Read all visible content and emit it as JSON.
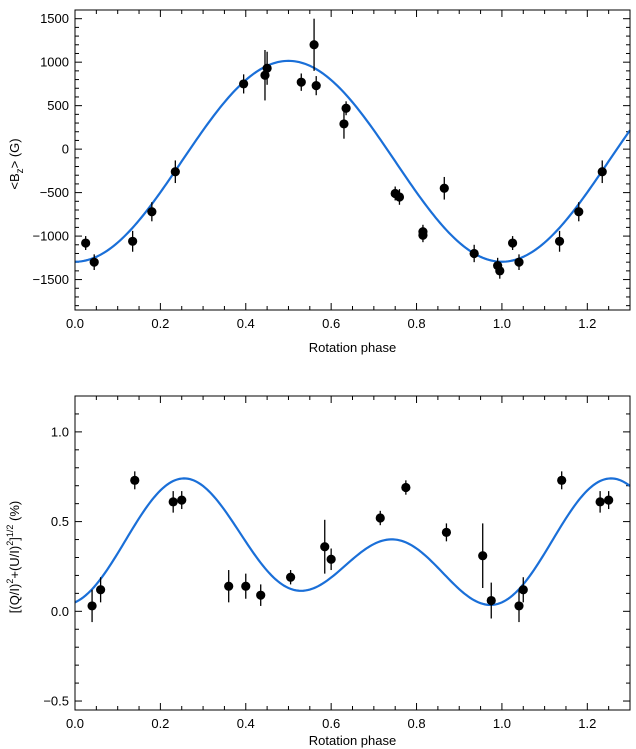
{
  "colors": {
    "fit": "#1a6fd8",
    "points": "#000000",
    "axes": "#000000"
  },
  "chart_data": [
    {
      "type": "scatter",
      "xlabel": "Rotation phase",
      "ylabel": "<B_z> (G)",
      "ylabel_parts": {
        "pre": "<B",
        "sub": "z",
        "post": "> (G)"
      },
      "xlim": [
        0.0,
        1.3
      ],
      "ylim": [
        -1850,
        1600
      ],
      "xticks": [
        0.0,
        0.2,
        0.4,
        0.6,
        0.8,
        1.0,
        1.2
      ],
      "xtick_labels": [
        "0.0",
        "0.2",
        "0.4",
        "0.6",
        "0.8",
        "1.0",
        "1.2"
      ],
      "yticks": [
        -1500,
        -1000,
        -500,
        0,
        500,
        1000,
        1500
      ],
      "ytick_labels": [
        "−1500",
        "−1000",
        "−500",
        "0",
        "500",
        "1000",
        "1500"
      ],
      "fit_model": {
        "name": "sinusoid",
        "y0": -140,
        "amplitude": 1155,
        "phase_of_minimum": 0.0,
        "period": 1.0
      },
      "series": [
        {
          "name": "observations",
          "points": [
            {
              "x": 0.025,
              "y": -1080,
              "err": 80
            },
            {
              "x": 0.045,
              "y": -1300,
              "err": 90
            },
            {
              "x": 0.135,
              "y": -1060,
              "err": 120
            },
            {
              "x": 0.18,
              "y": -720,
              "err": 110
            },
            {
              "x": 0.235,
              "y": -260,
              "err": 130
            },
            {
              "x": 0.395,
              "y": 750,
              "err": 110
            },
            {
              "x": 0.445,
              "y": 850,
              "err": 290
            },
            {
              "x": 0.45,
              "y": 930,
              "err": 190
            },
            {
              "x": 0.53,
              "y": 770,
              "err": 100
            },
            {
              "x": 0.56,
              "y": 1200,
              "err": 300
            },
            {
              "x": 0.565,
              "y": 730,
              "err": 110
            },
            {
              "x": 0.63,
              "y": 290,
              "err": 170
            },
            {
              "x": 0.635,
              "y": 470,
              "err": 80
            },
            {
              "x": 0.75,
              "y": -510,
              "err": 80
            },
            {
              "x": 0.76,
              "y": -550,
              "err": 90
            },
            {
              "x": 0.815,
              "y": -950,
              "err": 80
            },
            {
              "x": 0.815,
              "y": -990,
              "err": 80
            },
            {
              "x": 0.865,
              "y": -450,
              "err": 130
            },
            {
              "x": 0.935,
              "y": -1200,
              "err": 100
            },
            {
              "x": 0.99,
              "y": -1340,
              "err": 90
            },
            {
              "x": 0.995,
              "y": -1400,
              "err": 90
            },
            {
              "x": 1.025,
              "y": -1080,
              "err": 80
            },
            {
              "x": 1.04,
              "y": -1300,
              "err": 90
            },
            {
              "x": 1.135,
              "y": -1060,
              "err": 120
            },
            {
              "x": 1.18,
              "y": -720,
              "err": 110
            },
            {
              "x": 1.235,
              "y": -260,
              "err": 130
            }
          ]
        },
        {
          "name": "sinusoidal fit"
        }
      ]
    },
    {
      "type": "scatter",
      "xlabel": "Rotation phase",
      "ylabel": "[(Q/I)^2+(U/I)^2]^1/2 (%)",
      "ylabel_parts": {
        "a": "[(Q/I)",
        "b": "+(U/I)",
        "c": "]",
        "d": " (%)",
        "sup2": "2",
        "sup_half": "1/2"
      },
      "xlim": [
        0.0,
        1.3
      ],
      "ylim": [
        -0.55,
        1.2
      ],
      "xticks": [
        0.0,
        0.2,
        0.4,
        0.6,
        0.8,
        1.0,
        1.2
      ],
      "xtick_labels": [
        "0.0",
        "0.2",
        "0.4",
        "0.6",
        "0.8",
        "1.0",
        "1.2"
      ],
      "yticks": [
        -0.5,
        0.0,
        0.5,
        1.0
      ],
      "ytick_labels": [
        "−0.5",
        "0.0",
        "0.5",
        "1.0"
      ],
      "fit_model": {
        "name": "double-wave",
        "y0": 0.33,
        "a1": -0.24,
        "c2": -0.04,
        "s2": 0.17,
        "period": 1.0
      },
      "series": [
        {
          "name": "observations",
          "points": [
            {
              "x": 0.04,
              "y": 0.03,
              "err": 0.09
            },
            {
              "x": 0.06,
              "y": 0.12,
              "err": 0.07
            },
            {
              "x": 0.14,
              "y": 0.73,
              "err": 0.05
            },
            {
              "x": 0.23,
              "y": 0.61,
              "err": 0.06
            },
            {
              "x": 0.25,
              "y": 0.62,
              "err": 0.05
            },
            {
              "x": 0.36,
              "y": 0.14,
              "err": 0.09
            },
            {
              "x": 0.4,
              "y": 0.14,
              "err": 0.07
            },
            {
              "x": 0.435,
              "y": 0.09,
              "err": 0.06
            },
            {
              "x": 0.505,
              "y": 0.19,
              "err": 0.04
            },
            {
              "x": 0.585,
              "y": 0.36,
              "err": 0.15
            },
            {
              "x": 0.6,
              "y": 0.29,
              "err": 0.06
            },
            {
              "x": 0.715,
              "y": 0.52,
              "err": 0.04
            },
            {
              "x": 0.775,
              "y": 0.69,
              "err": 0.04
            },
            {
              "x": 0.87,
              "y": 0.44,
              "err": 0.05
            },
            {
              "x": 0.955,
              "y": 0.31,
              "err": 0.18
            },
            {
              "x": 0.975,
              "y": 0.06,
              "err": 0.1
            },
            {
              "x": 1.04,
              "y": 0.03,
              "err": 0.09
            },
            {
              "x": 1.05,
              "y": 0.12,
              "err": 0.07
            },
            {
              "x": 1.14,
              "y": 0.73,
              "err": 0.05
            },
            {
              "x": 1.23,
              "y": 0.61,
              "err": 0.06
            },
            {
              "x": 1.25,
              "y": 0.62,
              "err": 0.05
            }
          ]
        },
        {
          "name": "double-wave fit"
        }
      ]
    }
  ]
}
